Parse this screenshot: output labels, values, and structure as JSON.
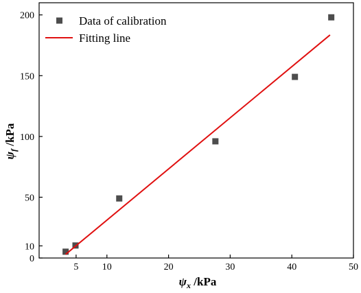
{
  "chart_data": {
    "type": "scatter",
    "title": "",
    "xlabel": {
      "symbol": "ψ",
      "sub": "x",
      "unit": " /kPa"
    },
    "ylabel": {
      "symbol": "ψ",
      "sub": "f",
      "unit": " /kPa"
    },
    "xlim": [
      -1,
      50
    ],
    "ylim": [
      0,
      210
    ],
    "xticks": [
      5,
      10,
      20,
      30,
      40,
      50
    ],
    "yticks": [
      0,
      10,
      50,
      100,
      150,
      200
    ],
    "grid": false,
    "legend_position": "top-left",
    "series": [
      {
        "name": "Data of calibration",
        "kind": "scatter",
        "marker": "square",
        "color": "#4d4d4d",
        "x": [
          3.3,
          4.9,
          12.0,
          27.6,
          40.5,
          46.4
        ],
        "y": [
          5.2,
          10.3,
          49.0,
          96.0,
          149.0,
          198.0
        ]
      },
      {
        "name": "Fitting line",
        "kind": "line",
        "color": "#e01010",
        "x": [
          3.3,
          46.2
        ],
        "y": [
          3.0,
          183.5
        ]
      }
    ]
  }
}
